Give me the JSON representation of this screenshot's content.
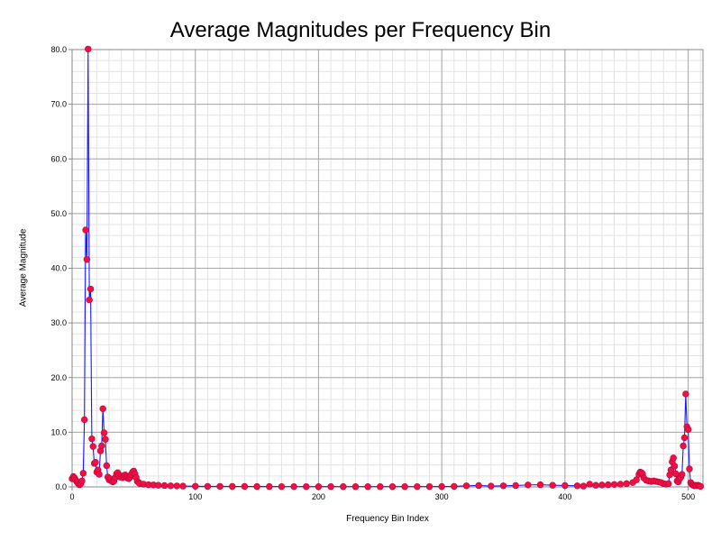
{
  "chart_data": {
    "type": "line",
    "title": "Average Magnitudes per Frequency Bin",
    "xlabel": "Frequency Bin Index",
    "ylabel": "Average Magnitude",
    "xlim": [
      0,
      512
    ],
    "ylim": [
      0,
      80
    ],
    "x_ticks": [
      "0",
      "100",
      "200",
      "300",
      "400",
      "500"
    ],
    "y_ticks": [
      "0.0",
      "10.0",
      "20.0",
      "30.0",
      "40.0",
      "50.0",
      "60.0",
      "70.0",
      "80.0"
    ],
    "grid": true,
    "line_color": "#1a1aff",
    "marker_color": "#ee1144",
    "points": [
      [
        0,
        1.5
      ],
      [
        1,
        1.9
      ],
      [
        2,
        1.6
      ],
      [
        3,
        1.2
      ],
      [
        4,
        0.9
      ],
      [
        5,
        0.6
      ],
      [
        6,
        0.4
      ],
      [
        7,
        0.6
      ],
      [
        8,
        1.1
      ],
      [
        9,
        2.5
      ],
      [
        10,
        12.3
      ],
      [
        11,
        47.0
      ],
      [
        12,
        41.6
      ],
      [
        13,
        80.1
      ],
      [
        14,
        34.2
      ],
      [
        15,
        36.2
      ],
      [
        16,
        8.8
      ],
      [
        17,
        7.4
      ],
      [
        18,
        4.3
      ],
      [
        19,
        4.5
      ],
      [
        20,
        2.7
      ],
      [
        21,
        3.1
      ],
      [
        22,
        2.3
      ],
      [
        23,
        6.6
      ],
      [
        24,
        7.5
      ],
      [
        25,
        14.3
      ],
      [
        26,
        9.9
      ],
      [
        27,
        8.7
      ],
      [
        28,
        3.9
      ],
      [
        29,
        1.8
      ],
      [
        30,
        1.3
      ],
      [
        31,
        1.5
      ],
      [
        32,
        1.1
      ],
      [
        33,
        0.9
      ],
      [
        34,
        1.1
      ],
      [
        35,
        1.7
      ],
      [
        36,
        2.4
      ],
      [
        37,
        2.6
      ],
      [
        38,
        2.1
      ],
      [
        39,
        1.8
      ],
      [
        40,
        2.0
      ],
      [
        41,
        1.7
      ],
      [
        42,
        1.9
      ],
      [
        43,
        2.2
      ],
      [
        44,
        1.8
      ],
      [
        45,
        1.6
      ],
      [
        46,
        1.5
      ],
      [
        47,
        1.8
      ],
      [
        48,
        2.3
      ],
      [
        49,
        2.7
      ],
      [
        50,
        2.9
      ],
      [
        51,
        2.4
      ],
      [
        52,
        1.7
      ],
      [
        53,
        1.0
      ],
      [
        54,
        0.8
      ],
      [
        55,
        0.6
      ],
      [
        58,
        0.5
      ],
      [
        62,
        0.4
      ],
      [
        66,
        0.35
      ],
      [
        70,
        0.3
      ],
      [
        75,
        0.25
      ],
      [
        80,
        0.2
      ],
      [
        85,
        0.18
      ],
      [
        90,
        0.15
      ],
      [
        100,
        0.12
      ],
      [
        110,
        0.1
      ],
      [
        120,
        0.1
      ],
      [
        130,
        0.08
      ],
      [
        140,
        0.08
      ],
      [
        150,
        0.07
      ],
      [
        160,
        0.07
      ],
      [
        170,
        0.06
      ],
      [
        180,
        0.06
      ],
      [
        190,
        0.06
      ],
      [
        200,
        0.05
      ],
      [
        210,
        0.05
      ],
      [
        220,
        0.05
      ],
      [
        230,
        0.05
      ],
      [
        240,
        0.05
      ],
      [
        250,
        0.05
      ],
      [
        260,
        0.05
      ],
      [
        270,
        0.05
      ],
      [
        280,
        0.06
      ],
      [
        290,
        0.06
      ],
      [
        300,
        0.07
      ],
      [
        310,
        0.1
      ],
      [
        320,
        0.2
      ],
      [
        330,
        0.25
      ],
      [
        340,
        0.15
      ],
      [
        350,
        0.2
      ],
      [
        360,
        0.25
      ],
      [
        370,
        0.35
      ],
      [
        380,
        0.4
      ],
      [
        390,
        0.3
      ],
      [
        400,
        0.25
      ],
      [
        410,
        0.2
      ],
      [
        415,
        0.15
      ],
      [
        420,
        0.5
      ],
      [
        425,
        0.3
      ],
      [
        430,
        0.35
      ],
      [
        435,
        0.4
      ],
      [
        440,
        0.45
      ],
      [
        445,
        0.5
      ],
      [
        450,
        0.6
      ],
      [
        455,
        0.8
      ],
      [
        458,
        1.3
      ],
      [
        460,
        2.3
      ],
      [
        461,
        2.7
      ],
      [
        462,
        2.6
      ],
      [
        463,
        2.4
      ],
      [
        464,
        1.6
      ],
      [
        466,
        1.2
      ],
      [
        468,
        1.1
      ],
      [
        470,
        1.0
      ],
      [
        472,
        1.1
      ],
      [
        474,
        1.0
      ],
      [
        476,
        0.9
      ],
      [
        478,
        0.8
      ],
      [
        480,
        0.6
      ],
      [
        482,
        0.5
      ],
      [
        484,
        0.6
      ],
      [
        485,
        2.2
      ],
      [
        486,
        3.1
      ],
      [
        487,
        4.6
      ],
      [
        488,
        5.3
      ],
      [
        489,
        3.8
      ],
      [
        490,
        2.4
      ],
      [
        491,
        1.1
      ],
      [
        492,
        0.9
      ],
      [
        493,
        1.5
      ],
      [
        494,
        1.8
      ],
      [
        495,
        2.3
      ],
      [
        496,
        7.5
      ],
      [
        497,
        9.0
      ],
      [
        498,
        17.0
      ],
      [
        499,
        11.0
      ],
      [
        500,
        10.5
      ],
      [
        501,
        3.3
      ],
      [
        502,
        0.8
      ],
      [
        503,
        0.5
      ],
      [
        504,
        0.3
      ],
      [
        505,
        0.2
      ],
      [
        506,
        0.3
      ],
      [
        507,
        0.2
      ],
      [
        508,
        0.3
      ],
      [
        509,
        0.2
      ],
      [
        510,
        0.1
      ]
    ]
  }
}
